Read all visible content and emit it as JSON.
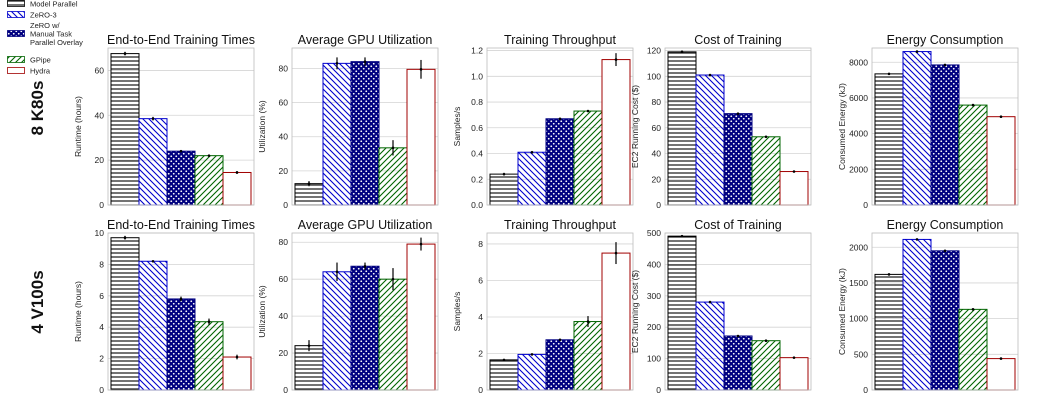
{
  "legend": {
    "placement": "top-left",
    "entries": [
      {
        "label": "Model Parallel"
      },
      {
        "label": "ZeRO-3"
      },
      {
        "label": "ZeRO w/ Manual Task Parallel Overlay",
        "lines": [
          "ZeRO w/",
          "Manual Task",
          "Parallel Overlay"
        ]
      },
      {
        "label": "GPipe"
      },
      {
        "label": "Hydra"
      }
    ]
  },
  "series_styles": [
    {
      "name": "Model Parallel",
      "edge": "#000000",
      "pattern": "horizontal-lines",
      "pattern_color": "#000000"
    },
    {
      "name": "ZeRO-3",
      "edge": "#0000cc",
      "pattern": "diagonal-back",
      "pattern_color": "#0000cc"
    },
    {
      "name": "ZeRO w/ Manual Task Parallel Overlay",
      "edge": "#000080",
      "pattern": "dots",
      "pattern_color": "#000080"
    },
    {
      "name": "GPipe",
      "edge": "#006400",
      "pattern": "diagonal-forward",
      "pattern_color": "#006400"
    },
    {
      "name": "Hydra",
      "edge": "#a00000",
      "pattern": "none",
      "pattern_color": "#a00000"
    }
  ],
  "row_labels": [
    "8 K80s",
    "4 V100s"
  ],
  "chart_data": [
    {
      "type": "bar",
      "title": "End-to-End Training Times",
      "ylabel": "Runtime (hours)",
      "ylim": [
        0,
        70
      ],
      "yticks": [
        0,
        20,
        40,
        60
      ],
      "ytick_labels": [
        "0",
        "20",
        "40",
        "60"
      ],
      "categories": [
        "Model Parallel",
        "ZeRO-3",
        "ZeRO w/ Manual Task Parallel Overlay",
        "GPipe",
        "Hydra"
      ],
      "values": [
        67.5,
        38.5,
        24.0,
        22.0,
        14.5
      ],
      "errors": [
        0.8,
        0.8,
        0.4,
        0.4,
        0.6
      ],
      "grid": true
    },
    {
      "type": "bar",
      "title": "Average GPU Utilization",
      "ylabel": "Utilization (%)",
      "ylim": [
        0,
        92
      ],
      "yticks": [
        0,
        20,
        40,
        60,
        80
      ],
      "ytick_labels": [
        "0",
        "20",
        "40",
        "60",
        "80"
      ],
      "categories": [
        "Model Parallel",
        "ZeRO-3",
        "ZeRO w/ Manual Task Parallel Overlay",
        "GPipe",
        "Hydra"
      ],
      "values": [
        12.5,
        83,
        84,
        33.5,
        79.5
      ],
      "errors": [
        1.5,
        3.5,
        2.5,
        4.5,
        5.5
      ],
      "grid": true
    },
    {
      "type": "bar",
      "title": "Training Throughput",
      "ylabel": "Samples/s",
      "ylim": [
        0,
        1.22
      ],
      "yticks": [
        0,
        0.2,
        0.4,
        0.6,
        0.8,
        1.0,
        1.2
      ],
      "ytick_labels": [
        "0.0",
        "0.2",
        "0.4",
        "0.6",
        "0.8",
        "1.0",
        "1.2"
      ],
      "categories": [
        "Model Parallel",
        "ZeRO-3",
        "ZeRO w/ Manual Task Parallel Overlay",
        "GPipe",
        "Hydra"
      ],
      "values": [
        0.24,
        0.41,
        0.67,
        0.73,
        1.13
      ],
      "errors": [
        0.01,
        0.01,
        0.005,
        0.005,
        0.05
      ],
      "grid": true
    },
    {
      "type": "bar",
      "title": "Cost of Training",
      "ylabel": "EC2 Running Cost ($)",
      "ylim": [
        0,
        122
      ],
      "yticks": [
        0,
        20,
        40,
        60,
        80,
        100,
        120
      ],
      "ytick_labels": [
        "0",
        "20",
        "40",
        "60",
        "80",
        "100",
        "120"
      ],
      "categories": [
        "Model Parallel",
        "ZeRO-3",
        "ZeRO w/ Manual Task Parallel Overlay",
        "GPipe",
        "Hydra"
      ],
      "values": [
        119,
        101,
        71,
        53,
        26
      ],
      "errors": [
        0.8,
        0.8,
        0.5,
        0.5,
        0.5
      ],
      "grid": true
    },
    {
      "type": "bar",
      "title": "Energy Consumption",
      "ylabel": "Consumed Energy (kJ)",
      "ylim": [
        0,
        8800
      ],
      "yticks": [
        0,
        2000,
        4000,
        6000,
        8000
      ],
      "ytick_labels": [
        "0",
        "2000",
        "4000",
        "6000",
        "8000"
      ],
      "categories": [
        "Model Parallel",
        "ZeRO-3",
        "ZeRO w/ Manual Task Parallel Overlay",
        "GPipe",
        "Hydra"
      ],
      "values": [
        7350,
        8600,
        7850,
        5600,
        4950
      ],
      "errors": [
        60,
        60,
        50,
        50,
        50
      ],
      "grid": true
    },
    {
      "type": "bar",
      "title": "End-to-End Training Times",
      "ylabel": "Runtime (hours)",
      "ylim": [
        0,
        10
      ],
      "yticks": [
        0,
        2,
        4,
        6,
        8,
        10
      ],
      "ytick_labels": [
        "0",
        "2",
        "4",
        "6",
        "8",
        "10"
      ],
      "categories": [
        "Model Parallel",
        "ZeRO-3",
        "ZeRO w/ Manual Task Parallel Overlay",
        "GPipe",
        "Hydra"
      ],
      "values": [
        9.7,
        8.2,
        5.8,
        4.35,
        2.1
      ],
      "errors": [
        0.12,
        0.05,
        0.15,
        0.2,
        0.15
      ],
      "grid": true
    },
    {
      "type": "bar",
      "title": "Average GPU Utilization",
      "ylabel": "Utilization (%)",
      "ylim": [
        0,
        85
      ],
      "yticks": [
        0,
        20,
        40,
        60,
        80
      ],
      "ytick_labels": [
        "0",
        "20",
        "40",
        "60",
        "80"
      ],
      "categories": [
        "Model Parallel",
        "ZeRO-3",
        "ZeRO w/ Manual Task Parallel Overlay",
        "GPipe",
        "Hydra"
      ],
      "values": [
        24,
        64,
        67,
        60,
        79
      ],
      "errors": [
        3,
        5,
        2,
        6,
        3.5
      ],
      "grid": true
    },
    {
      "type": "bar",
      "title": "Training Throughput",
      "ylabel": "Samples/s",
      "ylim": [
        0,
        8.6
      ],
      "yticks": [
        0,
        2,
        4,
        6,
        8
      ],
      "ytick_labels": [
        "0",
        "2",
        "4",
        "6",
        "8"
      ],
      "categories": [
        "Model Parallel",
        "ZeRO-3",
        "ZeRO w/ Manual Task Parallel Overlay",
        "GPipe",
        "Hydra"
      ],
      "values": [
        1.65,
        1.95,
        2.75,
        3.75,
        7.5
      ],
      "errors": [
        0.05,
        0.03,
        0.03,
        0.3,
        0.6
      ],
      "grid": true
    },
    {
      "type": "bar",
      "title": "Cost of Training",
      "ylabel": "EC2 Running Cost ($)",
      "ylim": [
        0,
        500
      ],
      "yticks": [
        0,
        100,
        200,
        300,
        400,
        500
      ],
      "ytick_labels": [
        "0",
        "100",
        "200",
        "300",
        "400",
        "500"
      ],
      "categories": [
        "Model Parallel",
        "ZeRO-3",
        "ZeRO w/ Manual Task Parallel Overlay",
        "GPipe",
        "Hydra"
      ],
      "values": [
        490,
        280,
        172,
        157,
        103
      ],
      "errors": [
        3,
        2,
        2,
        2,
        2
      ],
      "grid": true
    },
    {
      "type": "bar",
      "title": "Energy Consumption",
      "ylabel": "Consumed Energy (kJ)",
      "ylim": [
        0,
        2200
      ],
      "yticks": [
        0,
        500,
        1000,
        1500,
        2000
      ],
      "ytick_labels": [
        "0",
        "500",
        "1000",
        "1500",
        "2000"
      ],
      "categories": [
        "Model Parallel",
        "ZeRO-3",
        "ZeRO w/ Manual Task Parallel Overlay",
        "GPipe",
        "Hydra"
      ],
      "values": [
        1620,
        2110,
        1950,
        1130,
        440
      ],
      "errors": [
        15,
        12,
        12,
        10,
        8
      ],
      "grid": true
    }
  ]
}
